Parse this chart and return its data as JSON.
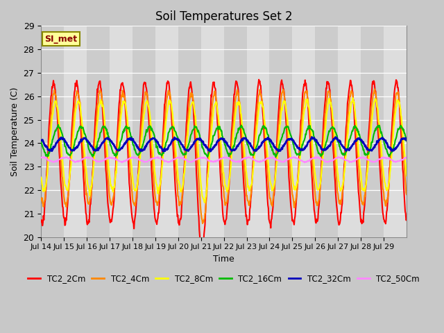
{
  "title": "Soil Temperatures Set 2",
  "xlabel": "Time",
  "ylabel": "Soil Temperature (C)",
  "ylim": [
    20.0,
    29.0
  ],
  "yticks": [
    20.0,
    21.0,
    22.0,
    23.0,
    24.0,
    25.0,
    26.0,
    27.0,
    28.0,
    29.0
  ],
  "xtick_labels": [
    "Jul 14",
    "Jul 15",
    "Jul 16",
    "Jul 17",
    "Jul 18",
    "Jul 19",
    "Jul 20",
    "Jul 21",
    "Jul 22",
    "Jul 23",
    "Jul 24",
    "Jul 25",
    "Jul 26",
    "Jul 27",
    "Jul 28",
    "Jul 29"
  ],
  "series_colors": {
    "TC2_2Cm": "#ff0000",
    "TC2_4Cm": "#ff8800",
    "TC2_8Cm": "#ffff00",
    "TC2_16Cm": "#00bb00",
    "TC2_32Cm": "#0000bb",
    "TC2_50Cm": "#ff88ff"
  },
  "series_lw": {
    "TC2_2Cm": 1.5,
    "TC2_4Cm": 1.5,
    "TC2_8Cm": 1.5,
    "TC2_16Cm": 1.5,
    "TC2_32Cm": 2.0,
    "TC2_50Cm": 1.5
  },
  "legend_label": "SI_met",
  "legend_bg": "#ffff99",
  "legend_border": "#888800",
  "n_days": 16,
  "pts_per_day": 48,
  "start_day": 14,
  "band_colors": [
    "#cccccc",
    "#dddddd"
  ]
}
